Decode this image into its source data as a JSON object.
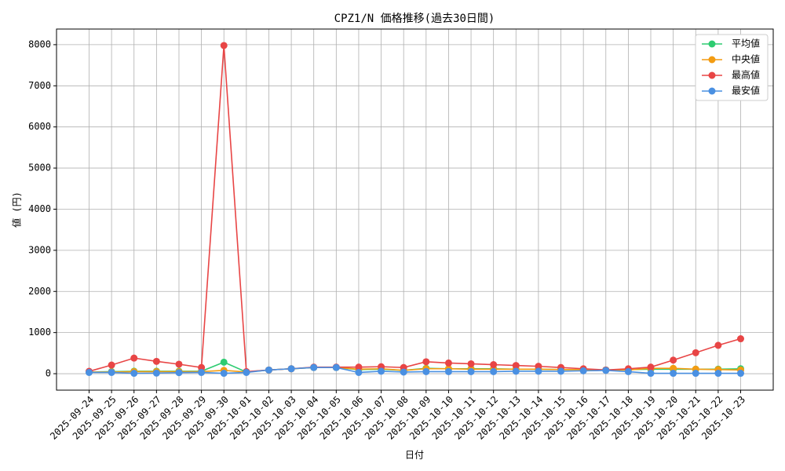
{
  "chart_data": {
    "type": "line",
    "title": "CPZ1/N 価格推移(過去30日間)",
    "x_label": "日付",
    "y_label": "値 (円)",
    "categories": [
      "2025-09-24",
      "2025-09-25",
      "2025-09-26",
      "2025-09-27",
      "2025-09-28",
      "2025-09-29",
      "2025-09-30",
      "2025-10-01",
      "2025-10-02",
      "2025-10-03",
      "2025-10-04",
      "2025-10-05",
      "2025-10-06",
      "2025-10-07",
      "2025-10-08",
      "2025-10-09",
      "2025-10-10",
      "2025-10-11",
      "2025-10-12",
      "2025-10-13",
      "2025-10-14",
      "2025-10-15",
      "2025-10-16",
      "2025-10-17",
      "2025-10-18",
      "2025-10-19",
      "2025-10-20",
      "2025-10-21",
      "2025-10-22",
      "2025-10-23"
    ],
    "series": [
      {
        "name": "平均値",
        "color": "#2ecc71",
        "values": [
          40,
          50,
          60,
          60,
          60,
          60,
          280,
          40,
          90,
          120,
          150,
          150,
          100,
          110,
          80,
          130,
          120,
          120,
          120,
          110,
          110,
          100,
          100,
          90,
          100,
          110,
          110,
          110,
          110,
          120
        ]
      },
      {
        "name": "中央値",
        "color": "#f39c12",
        "values": [
          40,
          40,
          50,
          50,
          50,
          50,
          80,
          40,
          90,
          120,
          150,
          150,
          110,
          120,
          80,
          120,
          120,
          110,
          110,
          110,
          110,
          100,
          100,
          90,
          90,
          130,
          130,
          110,
          100,
          90
        ]
      },
      {
        "name": "最高値",
        "color": "#e84545",
        "values": [
          57,
          210,
          380,
          300,
          230,
          150,
          7980,
          50,
          90,
          120,
          160,
          160,
          160,
          170,
          150,
          290,
          260,
          240,
          220,
          200,
          180,
          150,
          120,
          90,
          120,
          160,
          330,
          510,
          690,
          850
        ]
      },
      {
        "name": "最安値",
        "color": "#4a90e2",
        "values": [
          30,
          30,
          10,
          15,
          25,
          30,
          10,
          30,
          90,
          120,
          150,
          150,
          30,
          60,
          40,
          50,
          50,
          50,
          50,
          60,
          60,
          60,
          70,
          80,
          50,
          10,
          10,
          10,
          10,
          10
        ]
      }
    ],
    "ylim": [
      -400,
      8380
    ],
    "yticks": [
      0,
      1000,
      2000,
      3000,
      4000,
      5000,
      6000,
      7000,
      8000
    ],
    "grid": true,
    "legend": "upper right"
  }
}
